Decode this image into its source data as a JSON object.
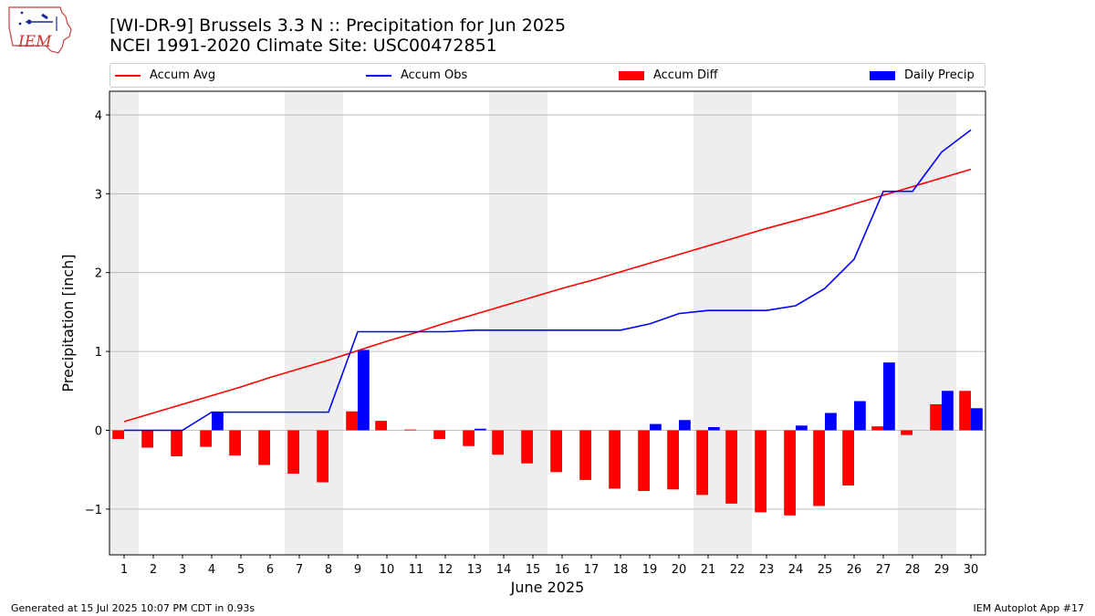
{
  "header": {
    "title_line1": "[WI-DR-9] Brussels 3.3 N :: Precipitation for Jun 2025",
    "title_line2": "NCEI 1991-2020 Climate Site: USC00472851"
  },
  "logo": {
    "text": "IEM"
  },
  "footer": {
    "left": "Generated at 15 Jul 2025 10:07 PM CDT in 0.93s",
    "right": "IEM Autoplot App #17"
  },
  "colors": {
    "accum_avg": "#ff0000",
    "accum_obs": "#0000ff",
    "accum_diff": "#ff0000",
    "daily_precip": "#0000ff",
    "weekend_shade": "#eeeeee",
    "grid": "#b0b0b0"
  },
  "chart_data": {
    "type": "bar",
    "title": "[WI-DR-9] Brussels 3.3 N :: Precipitation for Jun 2025",
    "xlabel": "June 2025",
    "ylabel": "Precipitation [inch]",
    "ylim": [
      -1.58,
      4.3
    ],
    "yticks": [
      -1,
      0,
      1,
      2,
      3,
      4
    ],
    "ytick_labels": [
      "−1",
      "0",
      "1",
      "2",
      "3",
      "4"
    ],
    "grid": "horizontal",
    "legend_position": "top",
    "x": [
      1,
      2,
      3,
      4,
      5,
      6,
      7,
      8,
      9,
      10,
      11,
      12,
      13,
      14,
      15,
      16,
      17,
      18,
      19,
      20,
      21,
      22,
      23,
      24,
      25,
      26,
      27,
      28,
      29,
      30
    ],
    "xtick_labels": [
      "1",
      "2",
      "3",
      "4",
      "5",
      "6",
      "7",
      "8",
      "9",
      "10",
      "11",
      "12",
      "13",
      "14",
      "15",
      "16",
      "17",
      "18",
      "19",
      "20",
      "21",
      "22",
      "23",
      "24",
      "25",
      "26",
      "27",
      "28",
      "29",
      "30"
    ],
    "shaded_days": [
      [
        1,
        1
      ],
      [
        7,
        8
      ],
      [
        14,
        15
      ],
      [
        21,
        22
      ],
      [
        28,
        29
      ]
    ],
    "series": [
      {
        "name": "Accum Avg",
        "kind": "line",
        "values": [
          0.11,
          0.22,
          0.33,
          0.44,
          0.55,
          0.67,
          0.78,
          0.89,
          1.01,
          1.13,
          1.24,
          1.36,
          1.47,
          1.58,
          1.69,
          1.8,
          1.9,
          2.01,
          2.12,
          2.23,
          2.34,
          2.45,
          2.56,
          2.66,
          2.76,
          2.87,
          2.98,
          3.09,
          3.2,
          3.31
        ]
      },
      {
        "name": "Accum Obs",
        "kind": "line",
        "values": [
          0.0,
          0.0,
          0.0,
          0.23,
          0.23,
          0.23,
          0.23,
          0.23,
          1.25,
          1.25,
          1.25,
          1.25,
          1.27,
          1.27,
          1.27,
          1.27,
          1.27,
          1.27,
          1.35,
          1.48,
          1.52,
          1.52,
          1.52,
          1.58,
          1.8,
          2.17,
          3.03,
          3.03,
          3.53,
          3.81
        ]
      },
      {
        "name": "Accum Diff",
        "kind": "bar",
        "values": [
          -0.11,
          -0.22,
          -0.33,
          -0.21,
          -0.32,
          -0.44,
          -0.55,
          -0.66,
          0.24,
          0.12,
          0.01,
          -0.11,
          -0.2,
          -0.31,
          -0.42,
          -0.53,
          -0.63,
          -0.74,
          -0.77,
          -0.75,
          -0.82,
          -0.93,
          -1.04,
          -1.08,
          -0.96,
          -0.7,
          0.05,
          -0.06,
          0.33,
          0.5
        ]
      },
      {
        "name": "Daily Precip",
        "kind": "bar",
        "values": [
          0.0,
          0.0,
          0.0,
          0.23,
          0.0,
          0.0,
          0.0,
          0.0,
          1.02,
          0.0,
          0.0,
          0.0,
          0.02,
          0.0,
          0.0,
          0.0,
          0.0,
          0.0,
          0.08,
          0.13,
          0.04,
          0.0,
          0.0,
          0.06,
          0.22,
          0.37,
          0.86,
          0.0,
          0.5,
          0.28
        ]
      }
    ]
  }
}
